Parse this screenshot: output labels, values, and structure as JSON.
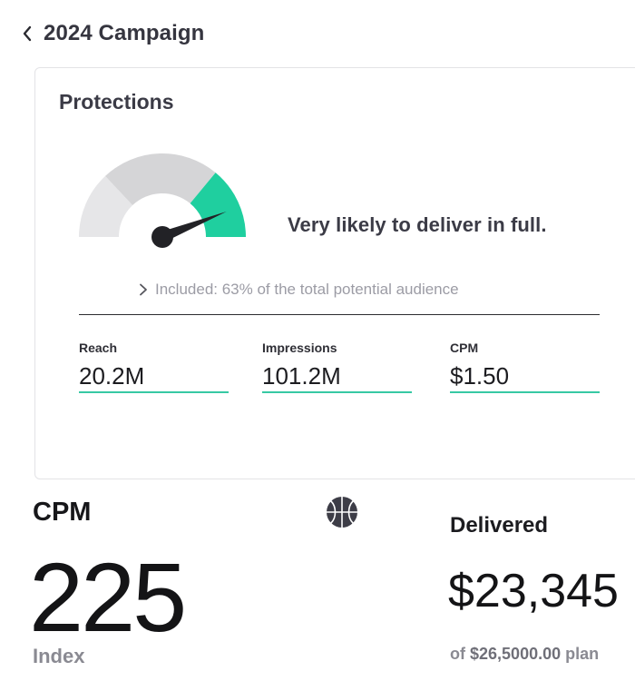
{
  "header": {
    "title": "2024 Campaign"
  },
  "protections": {
    "title": "Protections",
    "gauge": {
      "level": 0.88,
      "accent_color": "#1fcf9f",
      "track_color": "#d5d5d7",
      "light_color": "#e6e6e8"
    },
    "status": "Very likely to deliver in full.",
    "included": "Included: 63% of the total potential audience",
    "metrics": [
      {
        "label": "Reach",
        "value": "20.2M"
      },
      {
        "label": "Impressions",
        "value": "101.2M"
      },
      {
        "label": "CPM",
        "value": "$1.50"
      }
    ]
  },
  "cpm_panel": {
    "title": "CPM",
    "value": "225",
    "unit": "Index",
    "icon": "basketball-icon"
  },
  "delivered_panel": {
    "title": "Delivered",
    "value": "$23,345",
    "plan_prefix": "of",
    "plan_amount": "$26,5000.00",
    "plan_suffix": "plan"
  }
}
